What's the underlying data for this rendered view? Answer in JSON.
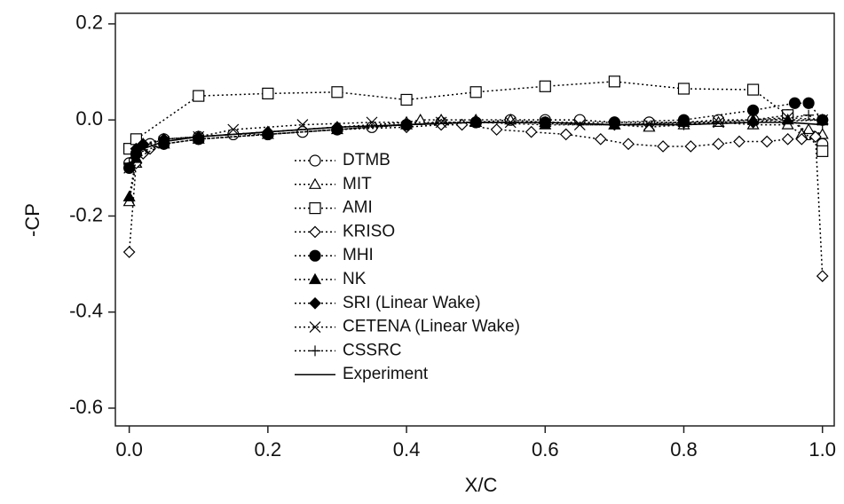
{
  "chart_data": {
    "type": "line",
    "xlabel": "X/C",
    "ylabel": "-CP",
    "xlim": [
      -0.02,
      1.017
    ],
    "ylim": [
      -0.637,
      0.222
    ],
    "xticks": [
      {
        "value": 0,
        "label": "0.0"
      },
      0.2,
      0.4,
      0.6,
      0.8,
      {
        "value": 1,
        "label": "1.0"
      }
    ],
    "yticks": [
      0.2,
      {
        "value": 0,
        "label": "0.0"
      },
      -0.2,
      -0.4,
      -0.6
    ],
    "grid": false,
    "series": [
      {
        "name": "DTMB",
        "color": "#000000",
        "marker": "circle",
        "filled": false,
        "line": "dotted",
        "x": [
          0,
          0.01,
          0.02,
          0.03,
          0.05,
          0.1,
          0.15,
          0.2,
          0.25,
          0.3,
          0.35,
          0.4,
          0.45,
          0.5,
          0.55,
          0.6,
          0.65,
          0.7,
          0.75,
          0.8,
          0.85,
          0.9,
          0.95,
          0.98,
          1.0
        ],
        "values": [
          -0.09,
          -0.07,
          -0.06,
          -0.05,
          -0.04,
          -0.035,
          -0.03,
          -0.03,
          -0.025,
          -0.02,
          -0.015,
          -0.01,
          -0.005,
          -0.005,
          0.0,
          0.0,
          0.0,
          -0.005,
          -0.005,
          -0.005,
          0.0,
          0.0,
          0.01,
          -0.03,
          -0.05
        ]
      },
      {
        "name": "MIT",
        "color": "#000000",
        "marker": "triangle",
        "filled": false,
        "line": "dotted",
        "x": [
          0,
          0.01,
          0.02,
          0.05,
          0.1,
          0.2,
          0.3,
          0.4,
          0.42,
          0.45,
          0.5,
          0.55,
          0.6,
          0.7,
          0.75,
          0.8,
          0.85,
          0.9,
          0.95,
          0.97,
          0.98,
          1.0
        ],
        "values": [
          -0.17,
          -0.09,
          -0.05,
          -0.04,
          -0.035,
          -0.025,
          -0.015,
          -0.005,
          0.0,
          0.0,
          0.0,
          0.0,
          -0.005,
          -0.01,
          -0.015,
          -0.01,
          -0.005,
          -0.01,
          -0.01,
          -0.03,
          -0.02,
          -0.03
        ]
      },
      {
        "name": "AMI",
        "color": "#000000",
        "marker": "square",
        "filled": false,
        "line": "dotted",
        "x": [
          0,
          0.01,
          0.1,
          0.2,
          0.3,
          0.4,
          0.5,
          0.6,
          0.7,
          0.8,
          0.9,
          0.95,
          1.0
        ],
        "values": [
          -0.06,
          -0.04,
          0.05,
          0.055,
          0.058,
          0.042,
          0.058,
          0.07,
          0.08,
          0.065,
          0.063,
          0.01,
          -0.065
        ]
      },
      {
        "name": "KRISO",
        "color": "#000000",
        "marker": "diamond",
        "filled": false,
        "line": "dotted",
        "x": [
          0,
          0.01,
          0.02,
          0.03,
          0.05,
          0.1,
          0.2,
          0.3,
          0.4,
          0.45,
          0.48,
          0.53,
          0.58,
          0.63,
          0.68,
          0.72,
          0.77,
          0.81,
          0.85,
          0.88,
          0.92,
          0.95,
          0.97,
          0.99,
          1.0
        ],
        "values": [
          -0.275,
          -0.09,
          -0.07,
          -0.06,
          -0.05,
          -0.04,
          -0.03,
          -0.02,
          -0.015,
          -0.01,
          -0.01,
          -0.02,
          -0.025,
          -0.03,
          -0.04,
          -0.05,
          -0.055,
          -0.055,
          -0.05,
          -0.045,
          -0.045,
          -0.04,
          -0.04,
          -0.035,
          -0.325
        ]
      },
      {
        "name": "MHI",
        "color": "#000000",
        "marker": "circle",
        "filled": true,
        "line": "dotted",
        "x": [
          0,
          0.01,
          0.05,
          0.1,
          0.2,
          0.3,
          0.4,
          0.5,
          0.6,
          0.7,
          0.8,
          0.9,
          0.96,
          0.98,
          1.0
        ],
        "values": [
          -0.1,
          -0.07,
          -0.05,
          -0.04,
          -0.03,
          -0.02,
          -0.01,
          -0.005,
          -0.005,
          -0.005,
          0.0,
          0.02,
          0.035,
          0.035,
          0.0
        ]
      },
      {
        "name": "NK",
        "color": "#000000",
        "marker": "triangle",
        "filled": true,
        "line": "dotted",
        "x": [
          0,
          0.01,
          0.05,
          0.1,
          0.2,
          0.3,
          0.4,
          0.5,
          0.6,
          0.7,
          0.8,
          0.9,
          0.95,
          1.0
        ],
        "values": [
          -0.16,
          -0.08,
          -0.05,
          -0.04,
          -0.03,
          -0.02,
          -0.01,
          -0.005,
          -0.01,
          -0.01,
          -0.005,
          0.0,
          0.0,
          0.0
        ]
      },
      {
        "name": "SRI (Linear Wake)",
        "color": "#000000",
        "marker": "diamond",
        "filled": true,
        "line": "dotted",
        "x": [
          0,
          0.01,
          0.02,
          0.05,
          0.1,
          0.2,
          0.3,
          0.4,
          0.5,
          0.6,
          0.7,
          0.8,
          0.9,
          1.0
        ],
        "values": [
          -0.1,
          -0.06,
          -0.05,
          -0.04,
          -0.035,
          -0.025,
          -0.015,
          -0.01,
          -0.005,
          -0.005,
          -0.01,
          -0.005,
          -0.005,
          0.0
        ]
      },
      {
        "name": "CETENA (Linear Wake)",
        "color": "#000000",
        "marker": "x",
        "filled": false,
        "line": "dotted",
        "x": [
          0,
          0.01,
          0.02,
          0.05,
          0.1,
          0.15,
          0.25,
          0.35,
          0.45,
          0.55,
          0.65,
          0.75,
          0.85,
          0.95,
          1.0
        ],
        "values": [
          -0.1,
          -0.08,
          -0.06,
          -0.045,
          -0.035,
          -0.02,
          -0.01,
          -0.005,
          -0.005,
          -0.005,
          -0.01,
          -0.01,
          -0.005,
          0.005,
          0.0
        ]
      },
      {
        "name": "CSSRC",
        "color": "#000000",
        "marker": "plus",
        "filled": false,
        "line": "dotted",
        "x": [
          0,
          0.01,
          0.05,
          0.1,
          0.2,
          0.3,
          0.4,
          0.5,
          0.6,
          0.7,
          0.8,
          0.9,
          0.98,
          1.0
        ],
        "values": [
          -0.09,
          -0.06,
          -0.04,
          -0.035,
          -0.025,
          -0.015,
          -0.01,
          -0.005,
          -0.005,
          -0.01,
          -0.01,
          -0.005,
          0.01,
          -0.01
        ]
      },
      {
        "name": "Experiment",
        "color": "#000000",
        "marker": "none",
        "filled": false,
        "line": "solid",
        "x": [
          0,
          0.02,
          0.05,
          0.1,
          0.2,
          0.3,
          0.4,
          0.5,
          0.6,
          0.7,
          0.8,
          0.9,
          0.95,
          1.0
        ],
        "values": [
          -0.08,
          -0.06,
          -0.045,
          -0.035,
          -0.025,
          -0.015,
          -0.01,
          -0.005,
          -0.005,
          -0.01,
          -0.01,
          -0.005,
          -0.005,
          -0.01
        ]
      }
    ]
  }
}
